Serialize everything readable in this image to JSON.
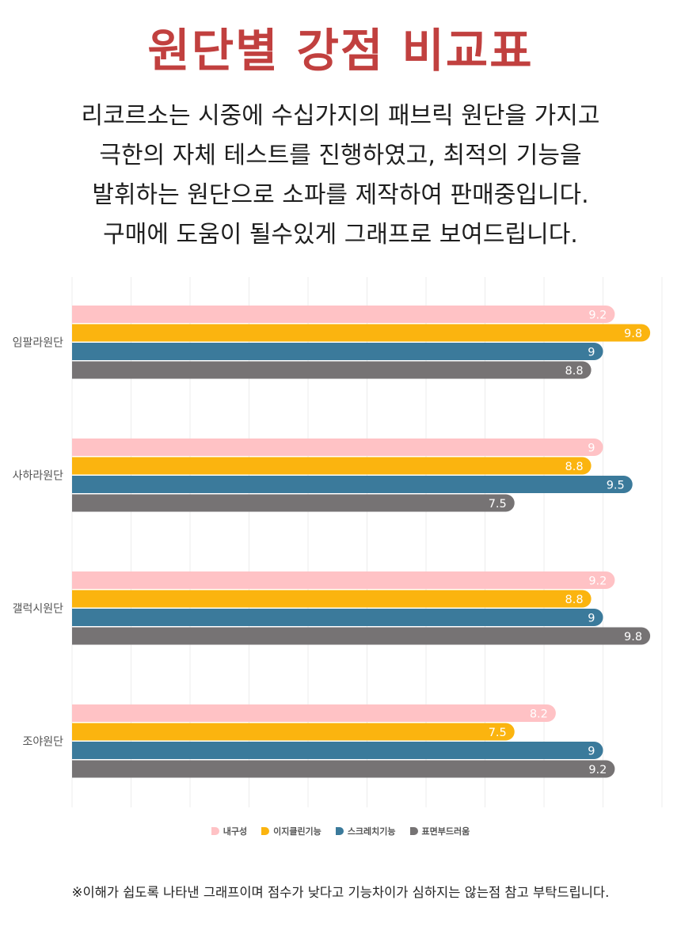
{
  "title": "원단별 강점 비교표",
  "intro": [
    "리코르소는 시중에 수십가지의 패브릭 원단을 가지고",
    "극한의 자체 테스트를 진행하였고, 최적의 기능을",
    "발휘하는 원단으로 소파를 제작하여 판매중입니다.",
    "구매에 도움이 될수있게 그래프로 보여드립니다."
  ],
  "footnote": "※이해가 쉽도록 나타낸 그래프이며 점수가 낮다고 기능차이가 심하지는 않는점 참고 부탁드립니다.",
  "chart_data": {
    "type": "bar",
    "orientation": "horizontal",
    "categories": [
      "임팔라원단",
      "사하라원단",
      "갤럭시원단",
      "조야원단"
    ],
    "series": [
      {
        "name": "내구성",
        "color": "#ffc2c5",
        "values": [
          9.2,
          9,
          9.2,
          8.2
        ]
      },
      {
        "name": "이지클린기능",
        "color": "#fbb40f",
        "values": [
          9.8,
          8.8,
          8.8,
          7.5
        ]
      },
      {
        "name": "스크레치기능",
        "color": "#3b7a9b",
        "values": [
          9,
          9.5,
          9,
          9
        ]
      },
      {
        "name": "표면부드러움",
        "color": "#767374",
        "values": [
          8.8,
          7.5,
          9.8,
          9.2
        ]
      }
    ],
    "xlim": [
      0,
      10
    ],
    "grid": true,
    "legend_position": "bottom"
  }
}
